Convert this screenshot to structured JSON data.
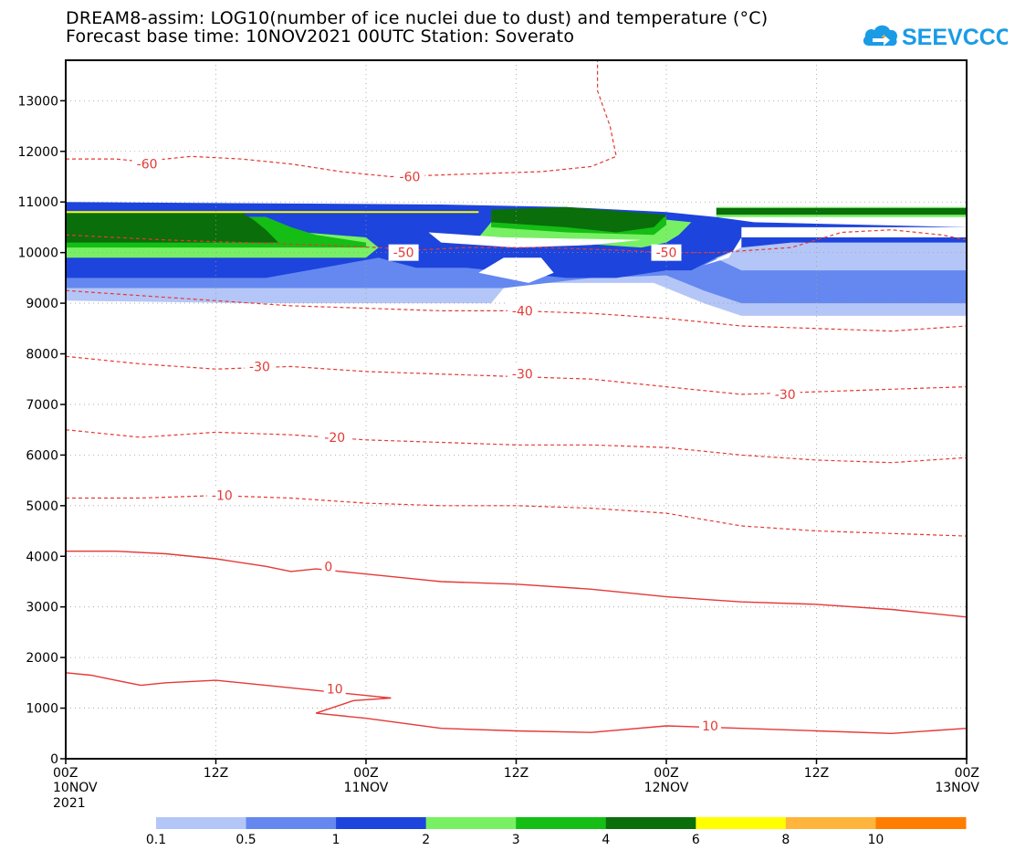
{
  "header": {
    "title_line1": "DREAM8-assim: LOG10(number of ice nuclei due to dust) and temperature (°C)",
    "title_line2": "Forecast base time: 10NOV2021 00UTC  Station: Soverato",
    "logo_text": "SEEVCCC"
  },
  "colors": {
    "contour": "#e53935",
    "logo": "#1a9be6"
  },
  "chart_data": {
    "type": "heatmap",
    "title": "DREAM8-assim: LOG10(number of ice nuclei due to dust) and temperature (°C)",
    "station": "Soverato",
    "x_range_hours": [
      0,
      72
    ],
    "ylim": [
      0,
      13800
    ],
    "yticks": [
      0,
      1000,
      2000,
      3000,
      4000,
      5000,
      6000,
      7000,
      8000,
      9000,
      10000,
      11000,
      12000,
      13000
    ],
    "xticks": [
      {
        "hour": 0,
        "label": "00Z",
        "sub1": "10NOV",
        "sub2": "2021"
      },
      {
        "hour": 12,
        "label": "12Z",
        "sub1": "",
        "sub2": ""
      },
      {
        "hour": 24,
        "label": "00Z",
        "sub1": "11NOV",
        "sub2": ""
      },
      {
        "hour": 36,
        "label": "12Z",
        "sub1": "",
        "sub2": ""
      },
      {
        "hour": 48,
        "label": "00Z",
        "sub1": "12NOV",
        "sub2": ""
      },
      {
        "hour": 60,
        "label": "12Z",
        "sub1": "",
        "sub2": ""
      },
      {
        "hour": 72,
        "label": "00Z",
        "sub1": "13NOV",
        "sub2": ""
      }
    ],
    "colorbar": {
      "boundaries": [
        "0.1",
        "0.5",
        "1",
        "2",
        "3",
        "4",
        "6",
        "8",
        "10",
        ""
      ],
      "colors": [
        "#b4c6f7",
        "#6488f0",
        "#1d44dc",
        "#78f064",
        "#14be14",
        "#0a6e0a",
        "#ffff00",
        "#ffb43c",
        "#ff7d00"
      ]
    },
    "fill_regions": [
      {
        "level": 0,
        "points": [
          [
            0,
            9050
          ],
          [
            15,
            9000
          ],
          [
            30,
            9000
          ],
          [
            34,
            9000
          ],
          [
            35,
            9300
          ],
          [
            38,
            9400
          ],
          [
            47,
            9400
          ],
          [
            51,
            9000
          ],
          [
            54,
            8750
          ],
          [
            72,
            8750
          ],
          [
            72,
            10400
          ],
          [
            55,
            10400
          ],
          [
            52,
            10500
          ],
          [
            48,
            10600
          ],
          [
            40,
            10800
          ],
          [
            30,
            10900
          ],
          [
            0,
            10900
          ]
        ]
      },
      {
        "level": 1,
        "points": [
          [
            0,
            9300
          ],
          [
            17,
            9300
          ],
          [
            33,
            9300
          ],
          [
            35,
            9300
          ],
          [
            42,
            9500
          ],
          [
            48,
            9550
          ],
          [
            51,
            9250
          ],
          [
            54,
            9000
          ],
          [
            72,
            9000
          ],
          [
            72,
            9650
          ],
          [
            54,
            9650
          ],
          [
            51,
            10000
          ],
          [
            48,
            10150
          ],
          [
            40,
            10400
          ],
          [
            30,
            10600
          ],
          [
            0,
            10600
          ]
        ]
      },
      {
        "level": 2,
        "points": [
          [
            0,
            9500
          ],
          [
            16,
            9500
          ],
          [
            25,
            9900
          ],
          [
            28,
            9700
          ],
          [
            32,
            9700
          ],
          [
            36,
            9600
          ],
          [
            40,
            9500
          ],
          [
            44,
            9500
          ],
          [
            48,
            9650
          ],
          [
            50,
            9650
          ],
          [
            52,
            9900
          ],
          [
            54,
            10100
          ],
          [
            58,
            10200
          ],
          [
            72,
            10200
          ],
          [
            72,
            10500
          ],
          [
            55,
            10600
          ],
          [
            52,
            10700
          ],
          [
            48,
            10800
          ],
          [
            40,
            10900
          ],
          [
            30,
            10950
          ],
          [
            0,
            11000
          ]
        ]
      },
      {
        "level": 3,
        "points": [
          [
            0,
            9900
          ],
          [
            24,
            9900
          ],
          [
            25,
            10100
          ],
          [
            24,
            10300
          ],
          [
            19,
            10400
          ],
          [
            17,
            10600
          ],
          [
            16,
            10700
          ],
          [
            0,
            10700
          ]
        ]
      },
      {
        "level": 3,
        "points": [
          [
            33,
            10300
          ],
          [
            40,
            10200
          ],
          [
            46,
            10100
          ],
          [
            48,
            10200
          ],
          [
            49,
            10350
          ],
          [
            50,
            10600
          ],
          [
            48,
            10650
          ],
          [
            40,
            10700
          ],
          [
            34,
            10600
          ]
        ]
      },
      {
        "level": 3,
        "points": [
          [
            52,
            10700
          ],
          [
            72,
            10700
          ],
          [
            72,
            10900
          ],
          [
            52,
            10900
          ]
        ]
      },
      {
        "level": 4,
        "points": [
          [
            0,
            10100
          ],
          [
            24,
            10100
          ],
          [
            24,
            10200
          ],
          [
            20,
            10350
          ],
          [
            18,
            10500
          ],
          [
            16,
            10700
          ],
          [
            0,
            10700
          ]
        ]
      },
      {
        "level": 4,
        "points": [
          [
            34,
            10500
          ],
          [
            40,
            10400
          ],
          [
            47,
            10350
          ],
          [
            48,
            10550
          ],
          [
            48,
            10700
          ],
          [
            40,
            10800
          ],
          [
            34,
            10750
          ]
        ]
      },
      {
        "level": 5,
        "points": [
          [
            0,
            10200
          ],
          [
            17,
            10200
          ],
          [
            16,
            10450
          ],
          [
            15,
            10650
          ],
          [
            14,
            10800
          ],
          [
            0,
            10800
          ]
        ]
      },
      {
        "level": 5,
        "points": [
          [
            34,
            10600
          ],
          [
            40,
            10500
          ],
          [
            44,
            10400
          ],
          [
            47,
            10500
          ],
          [
            48,
            10750
          ],
          [
            40,
            10900
          ],
          [
            34,
            10850
          ]
        ]
      },
      {
        "level": 5,
        "points": [
          [
            52,
            10750
          ],
          [
            72,
            10750
          ],
          [
            72,
            10880
          ],
          [
            52,
            10880
          ]
        ]
      }
    ],
    "blank_regions": [
      {
        "points": [
          [
            29,
            10400
          ],
          [
            35,
            10300
          ],
          [
            46,
            10250
          ],
          [
            42,
            10150
          ],
          [
            36,
            10100
          ],
          [
            30,
            10200
          ]
        ]
      },
      {
        "points": [
          [
            33,
            9600
          ],
          [
            37,
            9400
          ],
          [
            39,
            9600
          ],
          [
            38,
            9900
          ],
          [
            35,
            9900
          ]
        ]
      },
      {
        "points": [
          [
            51,
            9750
          ],
          [
            54,
            10100
          ],
          [
            54,
            10500
          ],
          [
            72,
            10500
          ],
          [
            72,
            10300
          ],
          [
            54,
            10300
          ],
          [
            53,
            9900
          ]
        ]
      }
    ],
    "highlight_lines": [
      {
        "level": 6,
        "points": [
          [
            0,
            10800
          ],
          [
            33,
            10800
          ]
        ]
      }
    ],
    "temperature_contours": [
      {
        "label": "-60",
        "dashed": true,
        "points": [
          [
            0,
            11850
          ],
          [
            4,
            11850
          ],
          [
            6,
            11800
          ],
          [
            8,
            11850
          ],
          [
            10,
            11900
          ],
          [
            14,
            11850
          ],
          [
            18,
            11750
          ],
          [
            22,
            11600
          ],
          [
            26,
            11500
          ],
          [
            32,
            11550
          ],
          [
            38,
            11600
          ],
          [
            42,
            11700
          ],
          [
            44,
            11900
          ],
          [
            43.5,
            12500
          ],
          [
            42.5,
            13200
          ],
          [
            42.5,
            13800
          ]
        ],
        "labels": [
          {
            "x": 6.5,
            "y": 11750
          },
          {
            "x": 27.5,
            "y": 11500
          }
        ]
      },
      {
        "label": "-50",
        "dashed": true,
        "points": [
          [
            0,
            10350
          ],
          [
            8,
            10250
          ],
          [
            14,
            10200
          ],
          [
            20,
            10150
          ],
          [
            25,
            10100
          ],
          [
            28,
            10050
          ],
          [
            32,
            10100
          ],
          [
            38,
            10100
          ],
          [
            44,
            10050
          ],
          [
            48,
            10000
          ],
          [
            52,
            10000
          ],
          [
            58,
            10100
          ],
          [
            62,
            10400
          ],
          [
            66,
            10450
          ],
          [
            70,
            10350
          ],
          [
            72,
            10250
          ]
        ],
        "labels": [
          {
            "x": 27.0,
            "y": 10000
          },
          {
            "x": 48.0,
            "y": 10000
          }
        ]
      },
      {
        "label": "-40",
        "dashed": true,
        "points": [
          [
            0,
            9250
          ],
          [
            6,
            9150
          ],
          [
            12,
            9050
          ],
          [
            18,
            8950
          ],
          [
            24,
            8900
          ],
          [
            30,
            8850
          ],
          [
            36,
            8850
          ],
          [
            42,
            8800
          ],
          [
            48,
            8700
          ],
          [
            54,
            8550
          ],
          [
            60,
            8500
          ],
          [
            66,
            8450
          ],
          [
            72,
            8550
          ]
        ],
        "labels": [
          {
            "x": 36.5,
            "y": 8850
          }
        ]
      },
      {
        "label": "-30",
        "dashed": true,
        "points": [
          [
            0,
            7950
          ],
          [
            6,
            7800
          ],
          [
            12,
            7700
          ],
          [
            18,
            7750
          ],
          [
            24,
            7650
          ],
          [
            30,
            7600
          ],
          [
            36,
            7550
          ],
          [
            42,
            7500
          ],
          [
            48,
            7350
          ],
          [
            54,
            7200
          ],
          [
            60,
            7250
          ],
          [
            66,
            7300
          ],
          [
            72,
            7350
          ]
        ],
        "labels": [
          {
            "x": 15.5,
            "y": 7750
          },
          {
            "x": 36.5,
            "y": 7600
          },
          {
            "x": 57.5,
            "y": 7200
          }
        ]
      },
      {
        "label": "-20",
        "dashed": true,
        "points": [
          [
            0,
            6500
          ],
          [
            6,
            6350
          ],
          [
            12,
            6450
          ],
          [
            18,
            6400
          ],
          [
            24,
            6300
          ],
          [
            30,
            6250
          ],
          [
            36,
            6200
          ],
          [
            42,
            6200
          ],
          [
            48,
            6150
          ],
          [
            54,
            6000
          ],
          [
            60,
            5900
          ],
          [
            66,
            5850
          ],
          [
            72,
            5950
          ]
        ],
        "labels": [
          {
            "x": 21.5,
            "y": 6350
          }
        ]
      },
      {
        "label": "-10",
        "dashed": true,
        "points": [
          [
            0,
            5150
          ],
          [
            6,
            5150
          ],
          [
            12,
            5200
          ],
          [
            18,
            5150
          ],
          [
            24,
            5050
          ],
          [
            30,
            5000
          ],
          [
            36,
            5000
          ],
          [
            42,
            4950
          ],
          [
            48,
            4850
          ],
          [
            54,
            4600
          ],
          [
            60,
            4500
          ],
          [
            66,
            4450
          ],
          [
            72,
            4400
          ]
        ],
        "labels": [
          {
            "x": 12.5,
            "y": 5200
          }
        ]
      },
      {
        "label": "0",
        "dashed": false,
        "points": [
          [
            0,
            4100
          ],
          [
            4,
            4100
          ],
          [
            8,
            4050
          ],
          [
            12,
            3950
          ],
          [
            16,
            3800
          ],
          [
            18,
            3700
          ],
          [
            20,
            3750
          ],
          [
            22,
            3700
          ],
          [
            26,
            3600
          ],
          [
            30,
            3500
          ],
          [
            36,
            3450
          ],
          [
            42,
            3350
          ],
          [
            48,
            3200
          ],
          [
            54,
            3100
          ],
          [
            60,
            3050
          ],
          [
            66,
            2950
          ],
          [
            72,
            2800
          ]
        ],
        "labels": [
          {
            "x": 21.0,
            "y": 3800
          }
        ]
      },
      {
        "label": "10",
        "dashed": false,
        "points": [
          [
            0,
            1700
          ],
          [
            2,
            1650
          ],
          [
            4,
            1550
          ],
          [
            6,
            1450
          ],
          [
            8,
            1500
          ],
          [
            12,
            1550
          ],
          [
            16,
            1450
          ],
          [
            20,
            1350
          ],
          [
            24,
            1250
          ],
          [
            26,
            1200
          ],
          [
            23,
            1150
          ],
          [
            20,
            900
          ],
          [
            24,
            800
          ],
          [
            30,
            600
          ],
          [
            36,
            550
          ],
          [
            42,
            520
          ],
          [
            48,
            650
          ],
          [
            54,
            600
          ],
          [
            60,
            550
          ],
          [
            66,
            500
          ],
          [
            72,
            600
          ]
        ],
        "labels": [
          {
            "x": 21.5,
            "y": 1380
          },
          {
            "x": 51.5,
            "y": 650
          }
        ]
      }
    ]
  }
}
